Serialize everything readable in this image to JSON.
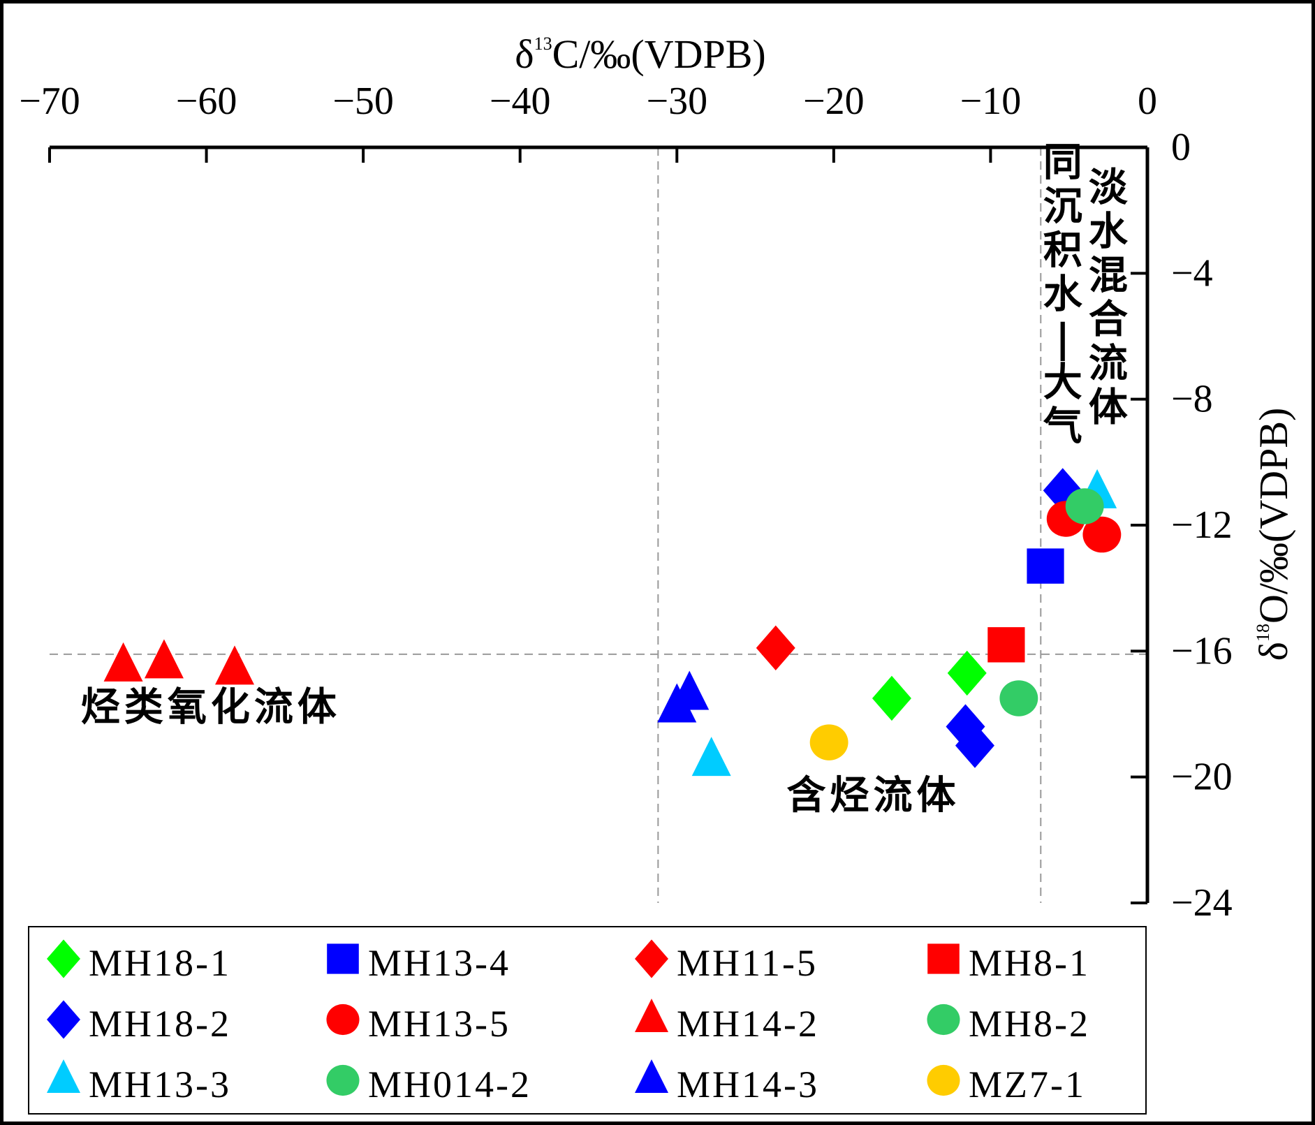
{
  "chart_data": {
    "type": "scatter",
    "title": "",
    "xlabel": "δ13C/‰(VDPB)",
    "ylabel": "δ18O/‰(VDPB)",
    "xlabel_parts": {
      "delta": "δ",
      "sup": "13",
      "rest": "C/‰(VDPB)"
    },
    "ylabel_parts": {
      "delta": "δ",
      "sup": "18",
      "rest": "O/‰(VDPB)"
    },
    "xlim": [
      -70,
      0
    ],
    "ylim": [
      -24,
      0
    ],
    "x_axis_position": "top",
    "y_axis_position": "right",
    "xticks": [
      -70,
      -60,
      -50,
      -40,
      -30,
      -20,
      -10,
      0
    ],
    "xtick_labels": [
      "−70",
      "−60",
      "−50",
      "−40",
      "−30",
      "−20",
      "−10",
      "0"
    ],
    "yticks": [
      0,
      -4,
      -8,
      -12,
      -16,
      -20,
      -24
    ],
    "ytick_labels": [
      "0",
      "−4",
      "−8",
      "−12",
      "−16",
      "−20",
      "−24"
    ],
    "grid": false,
    "reference_lines": [
      {
        "orientation": "vertical",
        "value": -31.2,
        "style": "dashed",
        "color": "#999999"
      },
      {
        "orientation": "vertical",
        "value": -6.8,
        "style": "dashed",
        "color": "#999999"
      },
      {
        "orientation": "horizontal",
        "value": -16.1,
        "style": "dashed",
        "color": "#999999"
      }
    ],
    "annotations": [
      {
        "text": "烃类氧化流体",
        "x": -68,
        "y": -18.2,
        "orientation": "horizontal"
      },
      {
        "text": "含烃流体",
        "x": -23,
        "y": -21.0,
        "orientation": "horizontal"
      },
      {
        "text": "同沉积水—大气",
        "x": -5.4,
        "y": -0.9,
        "orientation": "vertical"
      },
      {
        "text": "淡水混合流体",
        "x": -2.5,
        "y": -1.7,
        "orientation": "vertical"
      }
    ],
    "legend_position": "bottom",
    "series": [
      {
        "name": "MH18-1",
        "marker": "diamond",
        "color": "#00ff00",
        "points": [
          [
            -16.3,
            -17.5
          ],
          [
            -11.5,
            -16.7
          ]
        ]
      },
      {
        "name": "MH13-4",
        "marker": "square",
        "color": "#0000ff",
        "points": [
          [
            -6.5,
            -13.3
          ]
        ]
      },
      {
        "name": "MH11-5",
        "marker": "diamond",
        "color": "#ff0000",
        "points": [
          [
            -23.7,
            -15.9
          ]
        ]
      },
      {
        "name": "MH8-1",
        "marker": "square",
        "color": "#ff0000",
        "points": [
          [
            -9.0,
            -15.8
          ]
        ]
      },
      {
        "name": "MH18-2",
        "marker": "diamond",
        "color": "#0000ff",
        "points": [
          [
            -11.6,
            -18.4
          ],
          [
            -11.0,
            -19.0
          ],
          [
            -5.4,
            -10.9
          ]
        ]
      },
      {
        "name": "MH13-5",
        "marker": "circle",
        "color": "#ff0000",
        "points": [
          [
            -5.2,
            -11.8
          ],
          [
            -2.9,
            -12.3
          ]
        ]
      },
      {
        "name": "MH14-2",
        "marker": "triangle",
        "color": "#ff0000",
        "points": [
          [
            -65.3,
            -16.5
          ],
          [
            -62.7,
            -16.4
          ],
          [
            -58.2,
            -16.6
          ]
        ]
      },
      {
        "name": "MH8-2",
        "marker": "circle",
        "color": "#33cc66",
        "points": [
          [
            -8.2,
            -17.5
          ]
        ]
      },
      {
        "name": "MH13-3",
        "marker": "triangle",
        "color": "#00ccff",
        "points": [
          [
            -27.8,
            -19.5
          ],
          [
            -3.2,
            -11.0
          ]
        ]
      },
      {
        "name": "MH014-2",
        "marker": "circle",
        "color": "#33cc66",
        "points": [
          [
            -4.0,
            -11.4
          ]
        ]
      },
      {
        "name": "MH14-3",
        "marker": "triangle",
        "color": "#0000ff",
        "points": [
          [
            -30.0,
            -17.8
          ],
          [
            -29.2,
            -17.4
          ]
        ]
      },
      {
        "name": "MZ7-1",
        "marker": "circle",
        "color": "#ffcc00",
        "points": [
          [
            -20.3,
            -18.9
          ]
        ]
      }
    ]
  }
}
